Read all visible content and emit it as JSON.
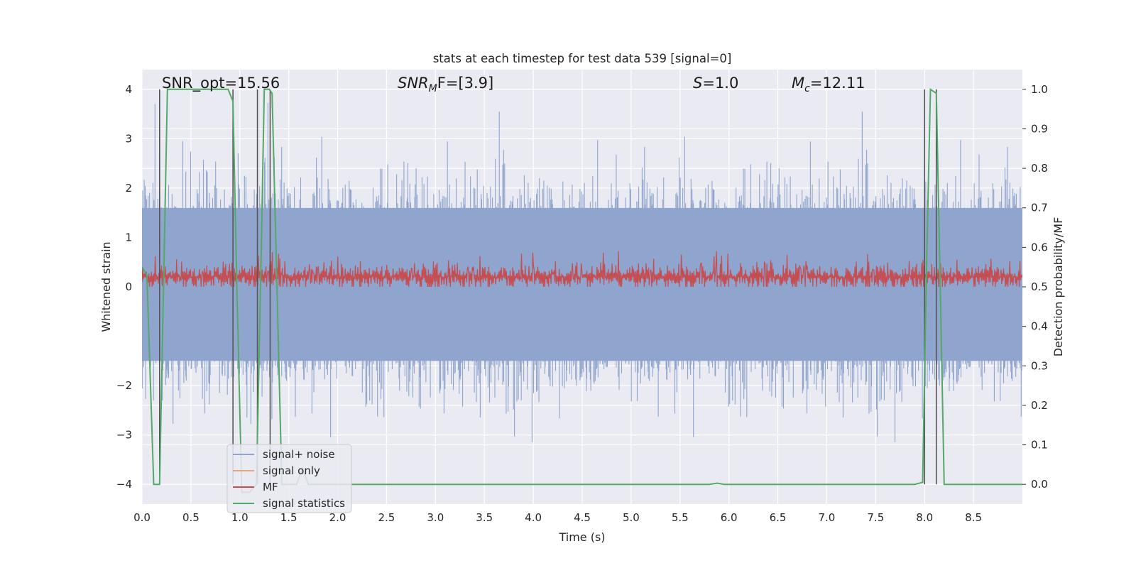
{
  "chart_data": {
    "type": "line",
    "title": "stats at each timestep for test data 539 [signal=0]",
    "xlabel": "Time (s)",
    "ylabel": "Whitened strain",
    "y2label": "Detection probability/MF",
    "xlim": [
      0,
      9.0
    ],
    "ylim": [
      -4.4,
      4.4
    ],
    "y2lim": [
      -0.05,
      1.05
    ],
    "xticks": [
      "0.0",
      "0.5",
      "1.0",
      "1.5",
      "2.0",
      "2.5",
      "3.0",
      "3.5",
      "4.0",
      "4.5",
      "5.0",
      "5.5",
      "6.0",
      "6.5",
      "7.0",
      "7.5",
      "8.0",
      "8.5"
    ],
    "yticks": [
      "4",
      "3",
      "2",
      "1",
      "0",
      "−2",
      "−3",
      "−4"
    ],
    "y2ticks": [
      "1.0",
      "0.9",
      "0.8",
      "0.7",
      "0.6",
      "0.5",
      "0.4",
      "0.3",
      "0.2",
      "0.1",
      "0.0"
    ],
    "grid": true,
    "legend_position": "lower-left",
    "annotations": {
      "snr_opt": "SNR_opt=15.56",
      "snr_mf_main": "SNR",
      "snr_mf_sub": "M",
      "snr_mf_rest": "F=[3.9]",
      "s_main": "S",
      "s_rest": "=1.0",
      "mc_main": "M",
      "mc_sub": "c",
      "mc_rest": "=12.11"
    },
    "series": [
      {
        "name": "signal+ noise",
        "color": "#8fa5cd",
        "axis": "left",
        "description_values": {
          "approx_range": [
            -3.8,
            4.0
          ],
          "samples": 9000
        }
      },
      {
        "name": "signal only",
        "color": "#e8a580",
        "axis": "left",
        "values": []
      },
      {
        "name": "MF",
        "color": "#c44e52",
        "axis": "right",
        "description_values": {
          "approx_range": [
            0.5,
            0.62
          ]
        }
      },
      {
        "name": "signal statistics",
        "color": "#55a868",
        "axis": "right",
        "x": [
          0.0,
          0.05,
          0.12,
          0.18,
          0.22,
          0.26,
          0.3,
          0.5,
          0.7,
          0.88,
          0.93,
          0.97,
          1.02,
          1.1,
          1.17,
          1.22,
          1.25,
          1.3,
          1.33,
          1.38,
          1.43,
          1.5,
          1.58,
          1.64,
          1.7,
          1.8,
          2.0,
          3.0,
          4.0,
          5.0,
          5.8,
          5.88,
          5.95,
          6.5,
          7.0,
          7.9,
          7.98,
          8.02,
          8.06,
          8.12,
          8.16,
          8.2,
          8.5,
          9.0
        ],
        "y": [
          0.55,
          0.53,
          0.0,
          0.0,
          0.5,
          1.0,
          1.0,
          1.0,
          1.0,
          1.0,
          0.97,
          0.5,
          -0.02,
          -0.02,
          0.0,
          0.6,
          1.0,
          1.0,
          0.99,
          0.5,
          0.0,
          0.0,
          0.0,
          0.04,
          0.0,
          0.0,
          0.0,
          0.0,
          0.0,
          0.0,
          0.0,
          0.003,
          0.0,
          0.0,
          0.0,
          0.0,
          0.005,
          0.55,
          1.0,
          0.99,
          0.5,
          0.0,
          0.0,
          0.0
        ]
      },
      {
        "name": "vertical markers",
        "color": "#555555",
        "axis": "left",
        "x": [
          0.18,
          0.93,
          1.18,
          1.31,
          8.0,
          8.12
        ]
      }
    ]
  },
  "legend": {
    "items": [
      {
        "label": "signal+ noise",
        "color": "#8fa5cd"
      },
      {
        "label": "signal only",
        "color": "#e8a580"
      },
      {
        "label": "MF",
        "color": "#c44e52"
      },
      {
        "label": "signal statistics",
        "color": "#55a868"
      }
    ]
  }
}
